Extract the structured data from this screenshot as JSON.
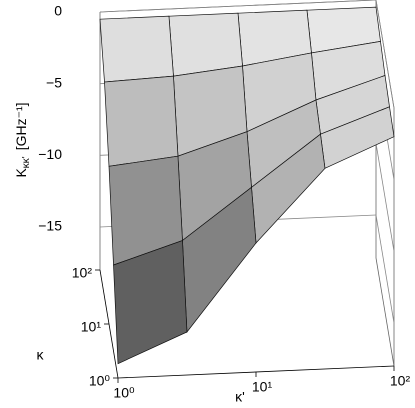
{
  "chart_data": {
    "type": "surface",
    "zlabel": {
      "symbol": "K",
      "subscript": "κκ'",
      "unit": "[GHz⁻¹]"
    },
    "xlabel": "κ'",
    "ylabel": "κ",
    "log_x": true,
    "log_y": true,
    "x": [
      1,
      3.16,
      10,
      31.6,
      100
    ],
    "y": [
      1,
      3.16,
      10,
      31.6,
      100
    ],
    "z": [
      [
        -17,
        -15,
        -9,
        -4,
        -2
      ],
      [
        -12,
        -10.5,
        -7,
        -3.5,
        -1.8
      ],
      [
        -7,
        -6.5,
        -5,
        -3,
        -1.5
      ],
      [
        -3,
        -2.8,
        -2.3,
        -1.6,
        -1
      ],
      [
        -0.5,
        -0.5,
        -0.5,
        -0.5,
        -0.5
      ]
    ],
    "xlim": [
      1,
      100
    ],
    "ylim": [
      1,
      100
    ],
    "zlim": [
      -18,
      0
    ],
    "xticks": [
      {
        "value": 1,
        "label": "10⁰"
      },
      {
        "value": 10,
        "label": "10¹"
      },
      {
        "value": 100,
        "label": "10²"
      }
    ],
    "yticks": [
      {
        "value": 1,
        "label": "10⁰"
      },
      {
        "value": 10,
        "label": "10¹"
      },
      {
        "value": 100,
        "label": "10²"
      }
    ],
    "zticks": [
      0,
      {
        "value": -5,
        "label": "−5"
      },
      {
        "value": -10,
        "label": "−10"
      },
      {
        "value": -15,
        "label": "−15"
      }
    ]
  }
}
